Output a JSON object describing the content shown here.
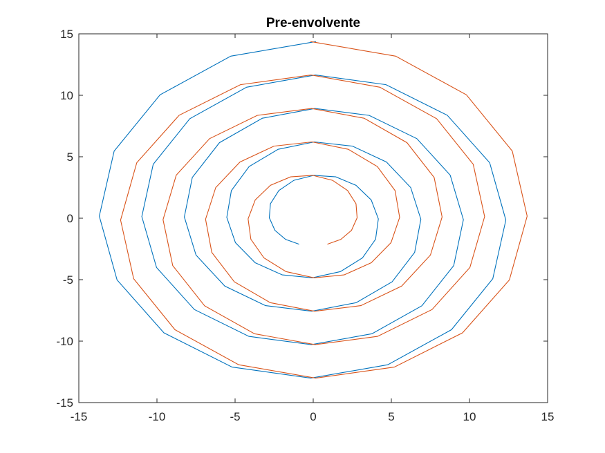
{
  "chart_data": {
    "type": "line",
    "title": "Pre-envolvente",
    "xlabel": "",
    "ylabel": "",
    "xlim": [
      -15,
      15
    ],
    "ylim": [
      -15,
      15
    ],
    "xticks": [
      -15,
      -10,
      -5,
      0,
      5,
      10,
      15
    ],
    "yticks": [
      -15,
      -10,
      -5,
      0,
      5,
      10,
      15
    ],
    "grid": false,
    "legend": "none",
    "curve": {
      "form": "polygonal spiral",
      "start_radius": 2.3,
      "growth_per_vertex": 0.17,
      "angle_step_deg": 22.5,
      "vertices_per_series": 72,
      "mirror_axis": "x = 0",
      "start_point": [
        -0.9,
        -2.1
      ]
    },
    "series": [
      {
        "color": "#0072BD"
      },
      {
        "color": "#D95319"
      }
    ]
  }
}
